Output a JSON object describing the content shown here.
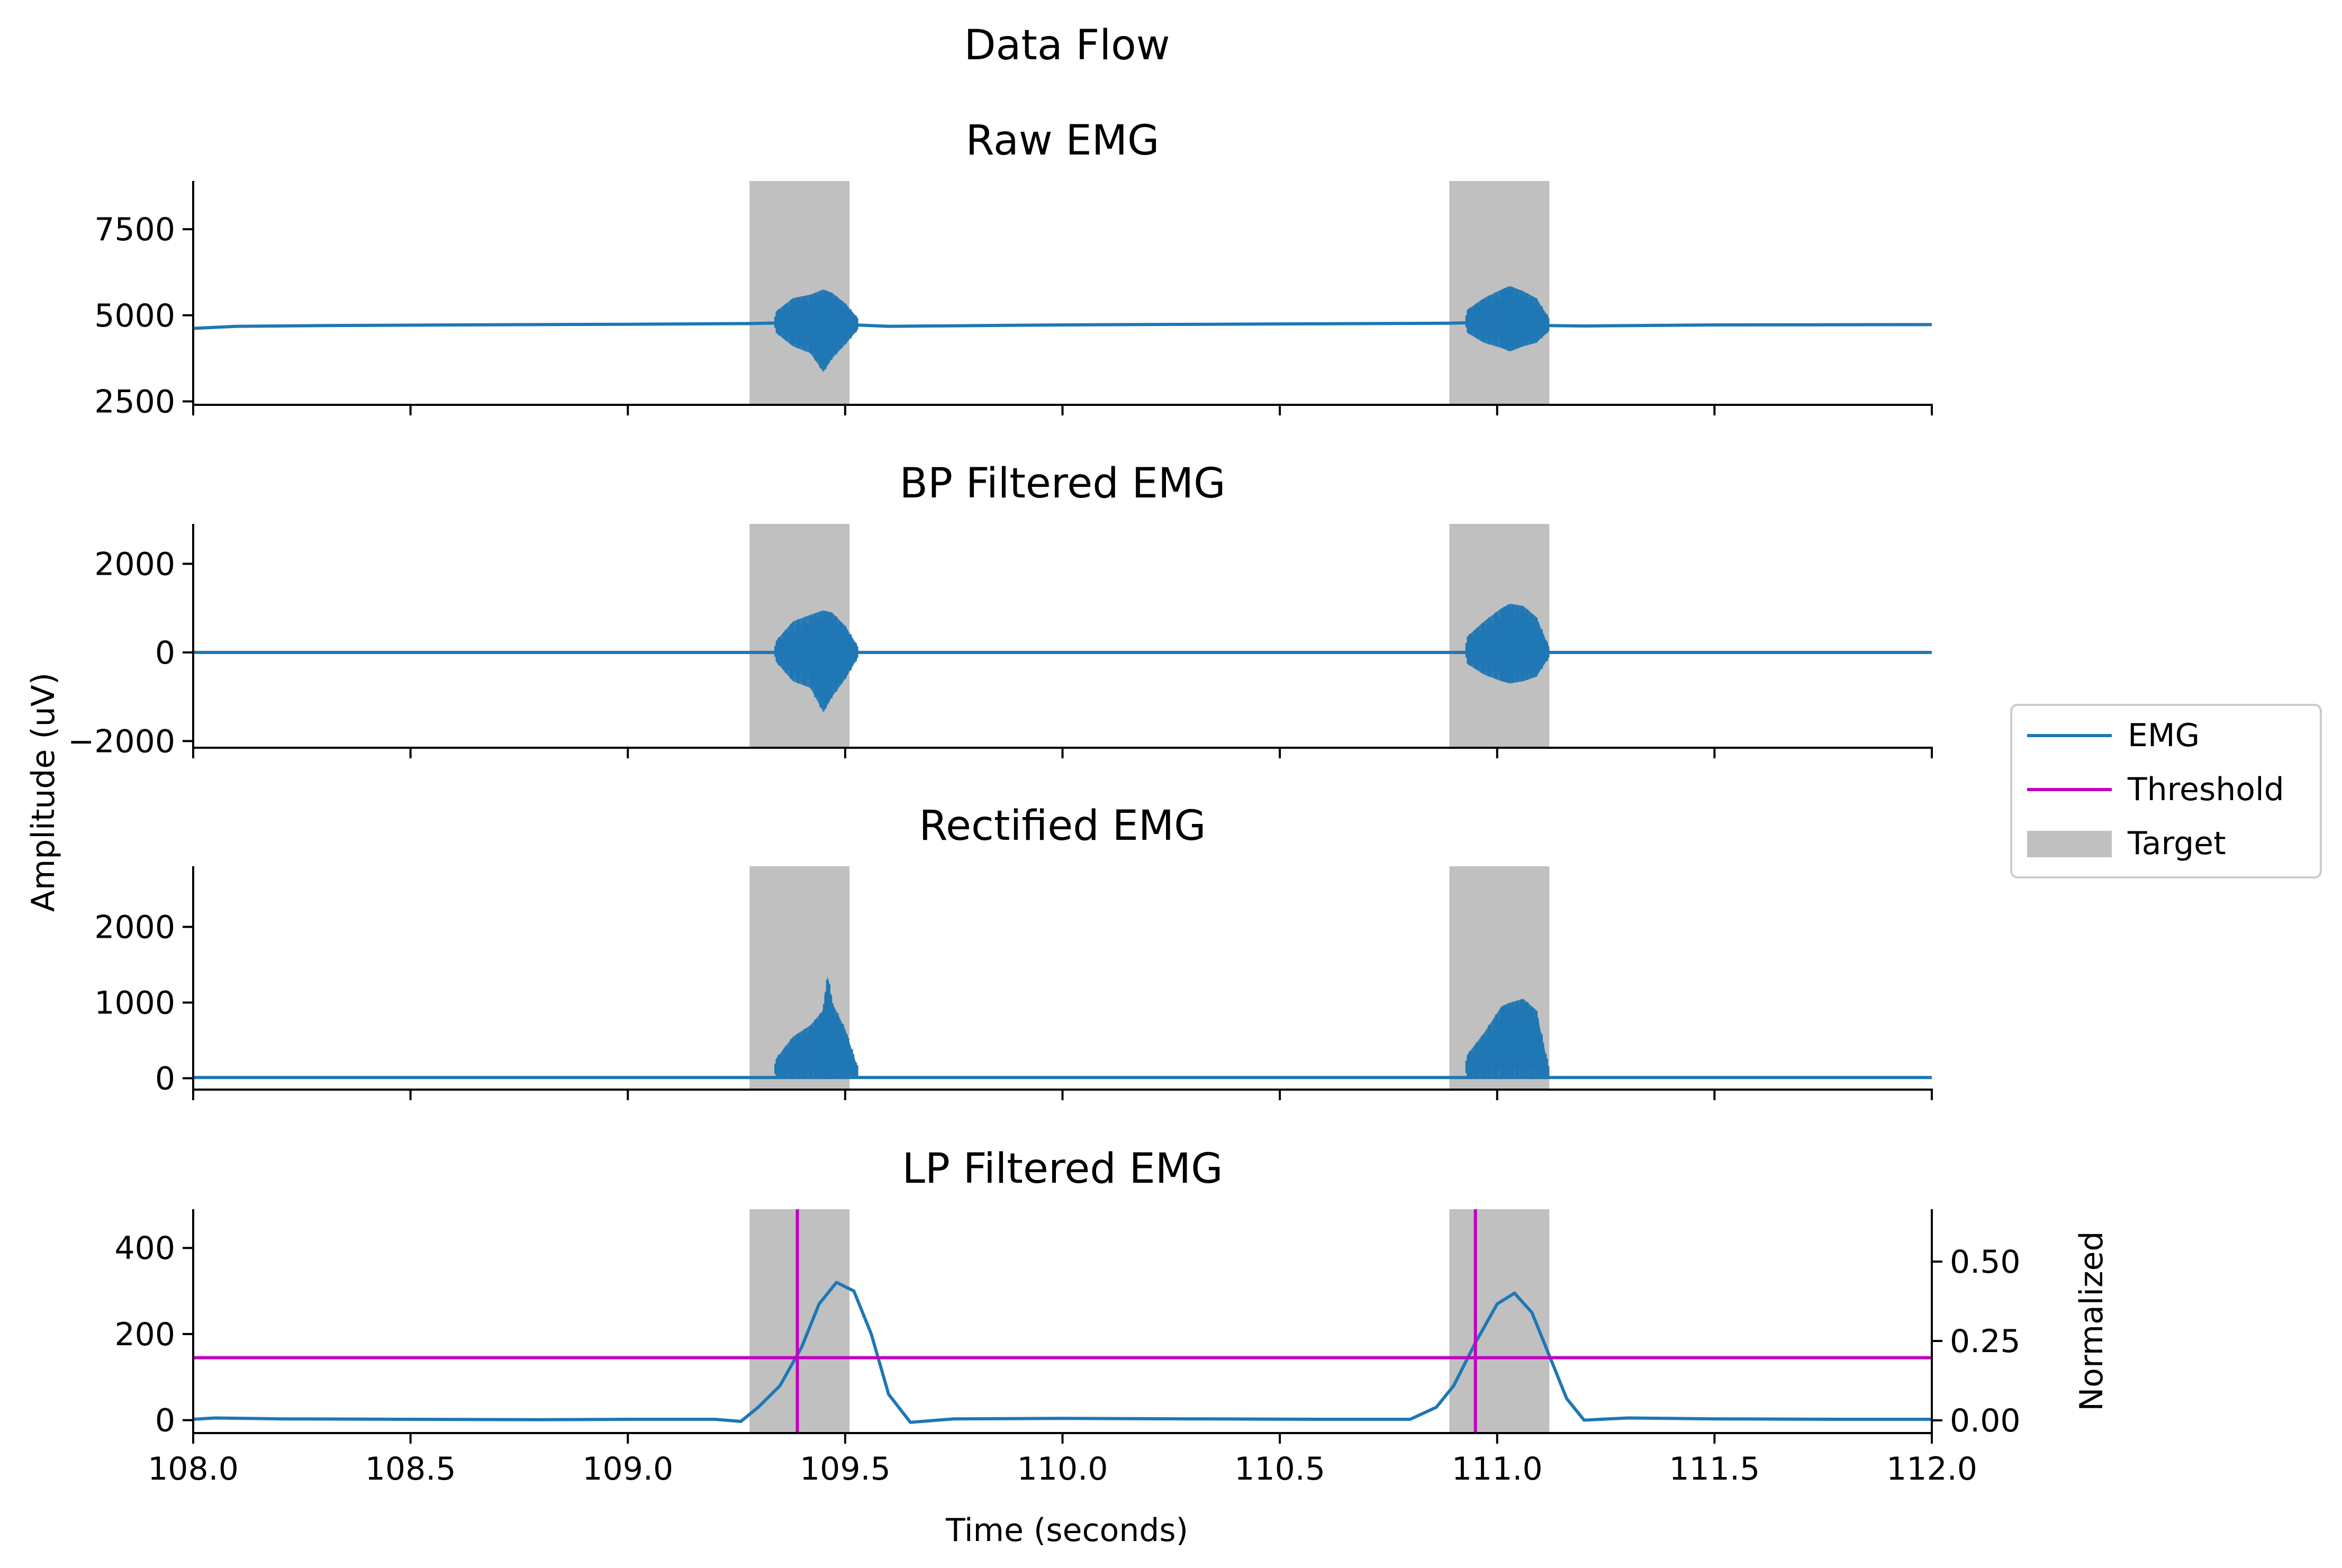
{
  "chart_data": {
    "type": "line",
    "suptitle": "Data Flow",
    "xlabel": "Time (seconds)",
    "ylabel": "Amplitude (uV)",
    "xlim": [
      108.0,
      112.0
    ],
    "x_ticks": [
      108.0,
      108.5,
      109.0,
      109.5,
      110.0,
      110.5,
      111.0,
      111.5,
      112.0
    ],
    "x_tick_labels": [
      "108.0",
      "108.5",
      "109.0",
      "109.5",
      "110.0",
      "110.5",
      "111.0",
      "111.5",
      "112.0"
    ],
    "colors": {
      "emg": "#1f77b4",
      "threshold": "#c000c0",
      "target": "#c0c0c0"
    },
    "target_windows": [
      [
        109.28,
        109.51
      ],
      [
        110.89,
        111.12
      ]
    ],
    "legend": {
      "placement": "center-right",
      "entries": [
        {
          "label": "EMG",
          "kind": "line",
          "color": "#1f77b4"
        },
        {
          "label": "Threshold",
          "kind": "line",
          "color": "#c000c0"
        },
        {
          "label": "Target",
          "kind": "patch",
          "color": "#c0c0c0"
        }
      ]
    },
    "panels": [
      {
        "id": "raw",
        "title": "Raw EMG",
        "ylim": [
          2400,
          8900
        ],
        "y_ticks": [
          2500,
          5000,
          7500
        ],
        "y_tick_labels": [
          "2500",
          "5000",
          "7500"
        ],
        "series": {
          "x": [
            108.0,
            108.1,
            108.3,
            108.6,
            109.0,
            109.28,
            109.36,
            109.4,
            109.44,
            109.46,
            109.48,
            109.52,
            109.6,
            110.0,
            110.5,
            110.89,
            110.96,
            111.0,
            111.04,
            111.06,
            111.1,
            111.12,
            111.2,
            111.5,
            112.0
          ],
          "y": [
            4620,
            4680,
            4700,
            4720,
            4740,
            4760,
            4780,
            4800,
            4810,
            4800,
            4790,
            4720,
            4680,
            4720,
            4750,
            4770,
            4790,
            4800,
            4810,
            4800,
            4780,
            4700,
            4690,
            4720,
            4730
          ],
          "env_x": [
            109.34,
            109.38,
            109.42,
            109.45,
            109.47,
            109.5,
            109.53,
            110.93,
            110.97,
            111.01,
            111.03,
            111.06,
            111.09,
            111.12
          ],
          "env_hi": [
            5100,
            5500,
            5600,
            5750,
            5650,
            5350,
            4900,
            5150,
            5500,
            5750,
            5850,
            5700,
            5500,
            4900
          ],
          "env_lo": [
            4500,
            4100,
            3900,
            3350,
            3750,
            4150,
            4600,
            4500,
            4200,
            4050,
            3950,
            4100,
            4200,
            4550
          ]
        }
      },
      {
        "id": "bp",
        "title": "BP Filtered EMG",
        "ylim": [
          -2150,
          2900
        ],
        "y_ticks": [
          -2000,
          0,
          2000
        ],
        "y_tick_labels": [
          "−2000",
          "0",
          "2000"
        ],
        "series": {
          "x": [
            108.0,
            109.28,
            109.5,
            109.52,
            110.89,
            111.12,
            112.0
          ],
          "y": [
            0,
            0,
            0,
            0,
            0,
            0,
            0
          ],
          "env_x": [
            109.34,
            109.38,
            109.42,
            109.45,
            109.47,
            109.5,
            109.53,
            110.93,
            110.97,
            111.01,
            111.03,
            111.06,
            111.09,
            111.12
          ],
          "env_hi": [
            250,
            700,
            850,
            950,
            900,
            600,
            120,
            350,
            700,
            1000,
            1100,
            1050,
            800,
            100
          ],
          "env_lo": [
            -200,
            -650,
            -800,
            -1350,
            -1000,
            -600,
            -100,
            -250,
            -500,
            -650,
            -700,
            -650,
            -550,
            -100
          ]
        }
      },
      {
        "id": "rect",
        "title": "Rectified EMG",
        "ylim": [
          -150,
          2800
        ],
        "y_ticks": [
          0,
          1000,
          2000
        ],
        "y_tick_labels": [
          "0",
          "1000",
          "2000"
        ],
        "series": {
          "x": [
            108.0,
            109.28,
            109.52,
            110.89,
            111.12,
            112.0
          ],
          "y": [
            10,
            10,
            10,
            10,
            10,
            10
          ],
          "env_x": [
            109.34,
            109.38,
            109.42,
            109.45,
            109.46,
            109.47,
            109.5,
            109.53,
            110.93,
            110.97,
            111.01,
            111.03,
            111.06,
            111.09,
            111.12
          ],
          "env_hi": [
            250,
            550,
            700,
            900,
            1350,
            1000,
            650,
            120,
            300,
            600,
            950,
            1000,
            1050,
            900,
            100
          ],
          "env_lo": [
            0,
            0,
            0,
            0,
            0,
            0,
            0,
            0,
            0,
            0,
            0,
            0,
            0,
            0,
            0
          ]
        }
      },
      {
        "id": "lp",
        "title": "LP Filtered EMG",
        "ylim": [
          -30,
          490
        ],
        "y_ticks": [
          0,
          200,
          400
        ],
        "y_tick_labels": [
          "0",
          "200",
          "400"
        ],
        "secondary_y": {
          "label": "Normalized",
          "ylim": [
            -0.04,
            0.665
          ],
          "y_ticks": [
            0.0,
            0.25,
            0.5
          ],
          "y_tick_labels": [
            "0.00",
            "0.25",
            "0.50"
          ]
        },
        "threshold_y": 145,
        "threshold_x": [
          109.39,
          110.95
        ],
        "series": {
          "x": [
            108.0,
            108.05,
            108.2,
            108.5,
            108.8,
            109.0,
            109.2,
            109.26,
            109.3,
            109.35,
            109.4,
            109.44,
            109.48,
            109.52,
            109.56,
            109.6,
            109.65,
            109.75,
            110.0,
            110.3,
            110.6,
            110.8,
            110.86,
            110.9,
            110.95,
            111.0,
            111.04,
            111.08,
            111.12,
            111.16,
            111.2,
            111.3,
            111.5,
            111.8,
            112.0
          ],
          "y": [
            2,
            5,
            3,
            2,
            1,
            2,
            2,
            -3,
            30,
            80,
            170,
            270,
            320,
            300,
            200,
            60,
            -5,
            3,
            4,
            3,
            2,
            2,
            30,
            80,
            180,
            270,
            295,
            250,
            150,
            50,
            0,
            5,
            3,
            2,
            2
          ]
        }
      }
    ]
  }
}
